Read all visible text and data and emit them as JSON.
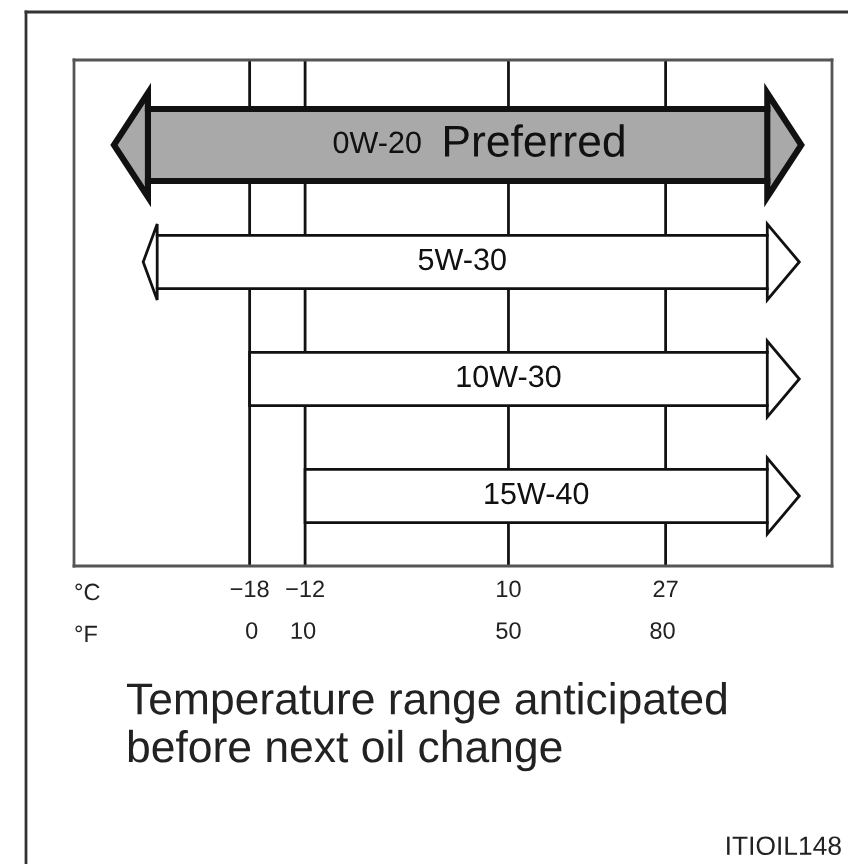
{
  "chart_data": {
    "type": "bar",
    "orientation": "horizontal",
    "categories": [
      "0W-20",
      "5W-30",
      "10W-30",
      "15W-40"
    ],
    "base": [
      -29,
      -28,
      -18,
      -12
    ],
    "values": [
      67,
      66,
      56,
      50
    ],
    "colors": [
      "#a9a9a9",
      "#ffffff",
      "#ffffff",
      "#ffffff"
    ],
    "xlim": [
      -37,
      45
    ],
    "xticks": [
      {
        "value": -18,
        "label": "−18"
      },
      {
        "value": -12,
        "label": "−12"
      },
      10,
      27
    ],
    "x2lim": [
      -34.6,
      113
    ],
    "x2ticks": [
      0,
      10,
      50,
      80
    ],
    "xlabel": "°C",
    "x2label": "°F",
    "grid": "x",
    "tick_labels": "x",
    "annotations": [
      "Preferred",
      "Temperature range anticipated before next oil change",
      "ITIOIL148"
    ]
  }
}
